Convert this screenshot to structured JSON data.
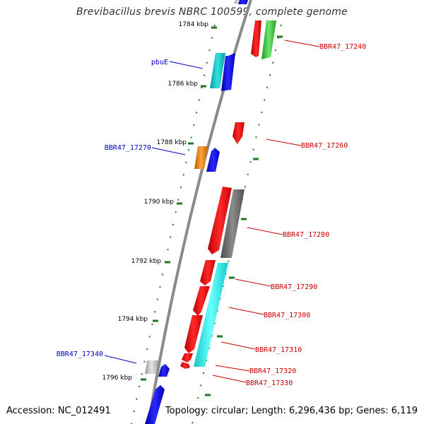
{
  "header": {
    "title": "Brevibacillus brevis NBRC 100599, complete genome"
  },
  "footer": {
    "accession": "Accession: NC_012491",
    "summary": "Topology: circular; Length: 6,296,436 bp; Genes: 6,119"
  },
  "colors": {
    "backbone": "#8a8a8a",
    "ruler_tick": "#1f7a1f",
    "left_label": "#0000cc",
    "right_label": "#cc0000"
  },
  "ruler": {
    "labels": [
      "1784 kbp",
      "1786 kbp",
      "1788 kbp",
      "1790 kbp",
      "1792 kbp",
      "1794 kbp",
      "1796 kbp"
    ]
  },
  "labels": {
    "left": [
      "pbuE",
      "BBR47_17270",
      "BBR47_17340"
    ],
    "right": [
      "BBR47_17240",
      "BBR47_17260",
      "BBR47_17280",
      "BBR47_17290",
      "BBR47_17300",
      "BBR47_17310",
      "BBR47_17320",
      "BBR47_17330"
    ]
  }
}
